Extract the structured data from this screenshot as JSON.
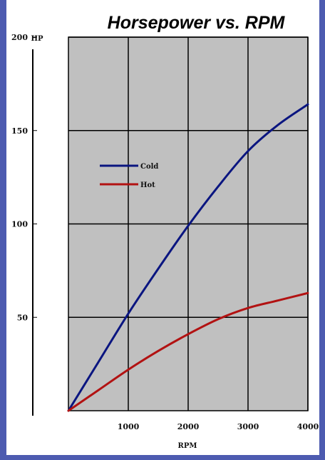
{
  "chart_data": {
    "type": "line",
    "title": "Horsepower vs. RPM",
    "xlabel": "RPM",
    "ylabel": "HP",
    "xlim": [
      0,
      4000
    ],
    "ylim": [
      0,
      200
    ],
    "xticks": [
      "1000",
      "2000",
      "3000",
      "4000"
    ],
    "yticks": [
      "50",
      "100",
      "150",
      "200"
    ],
    "grid": true,
    "legend": "left",
    "series": [
      {
        "name": "Cold",
        "color": "#0a1580",
        "x": [
          0,
          500,
          1000,
          1500,
          2000,
          2500,
          3000,
          3500,
          4000
        ],
        "y": [
          0,
          26,
          52,
          76,
          99,
          120,
          139,
          153,
          164
        ]
      },
      {
        "name": "Hot",
        "color": "#b21212",
        "x": [
          0,
          500,
          1000,
          1500,
          2000,
          2500,
          3000,
          3500,
          4000
        ],
        "y": [
          0,
          11,
          22,
          32,
          41,
          49,
          55,
          59,
          63
        ]
      }
    ]
  },
  "colors": {
    "border": "#4d5bb0",
    "plot_background": "#c0c0c0",
    "grid": "#000000"
  }
}
